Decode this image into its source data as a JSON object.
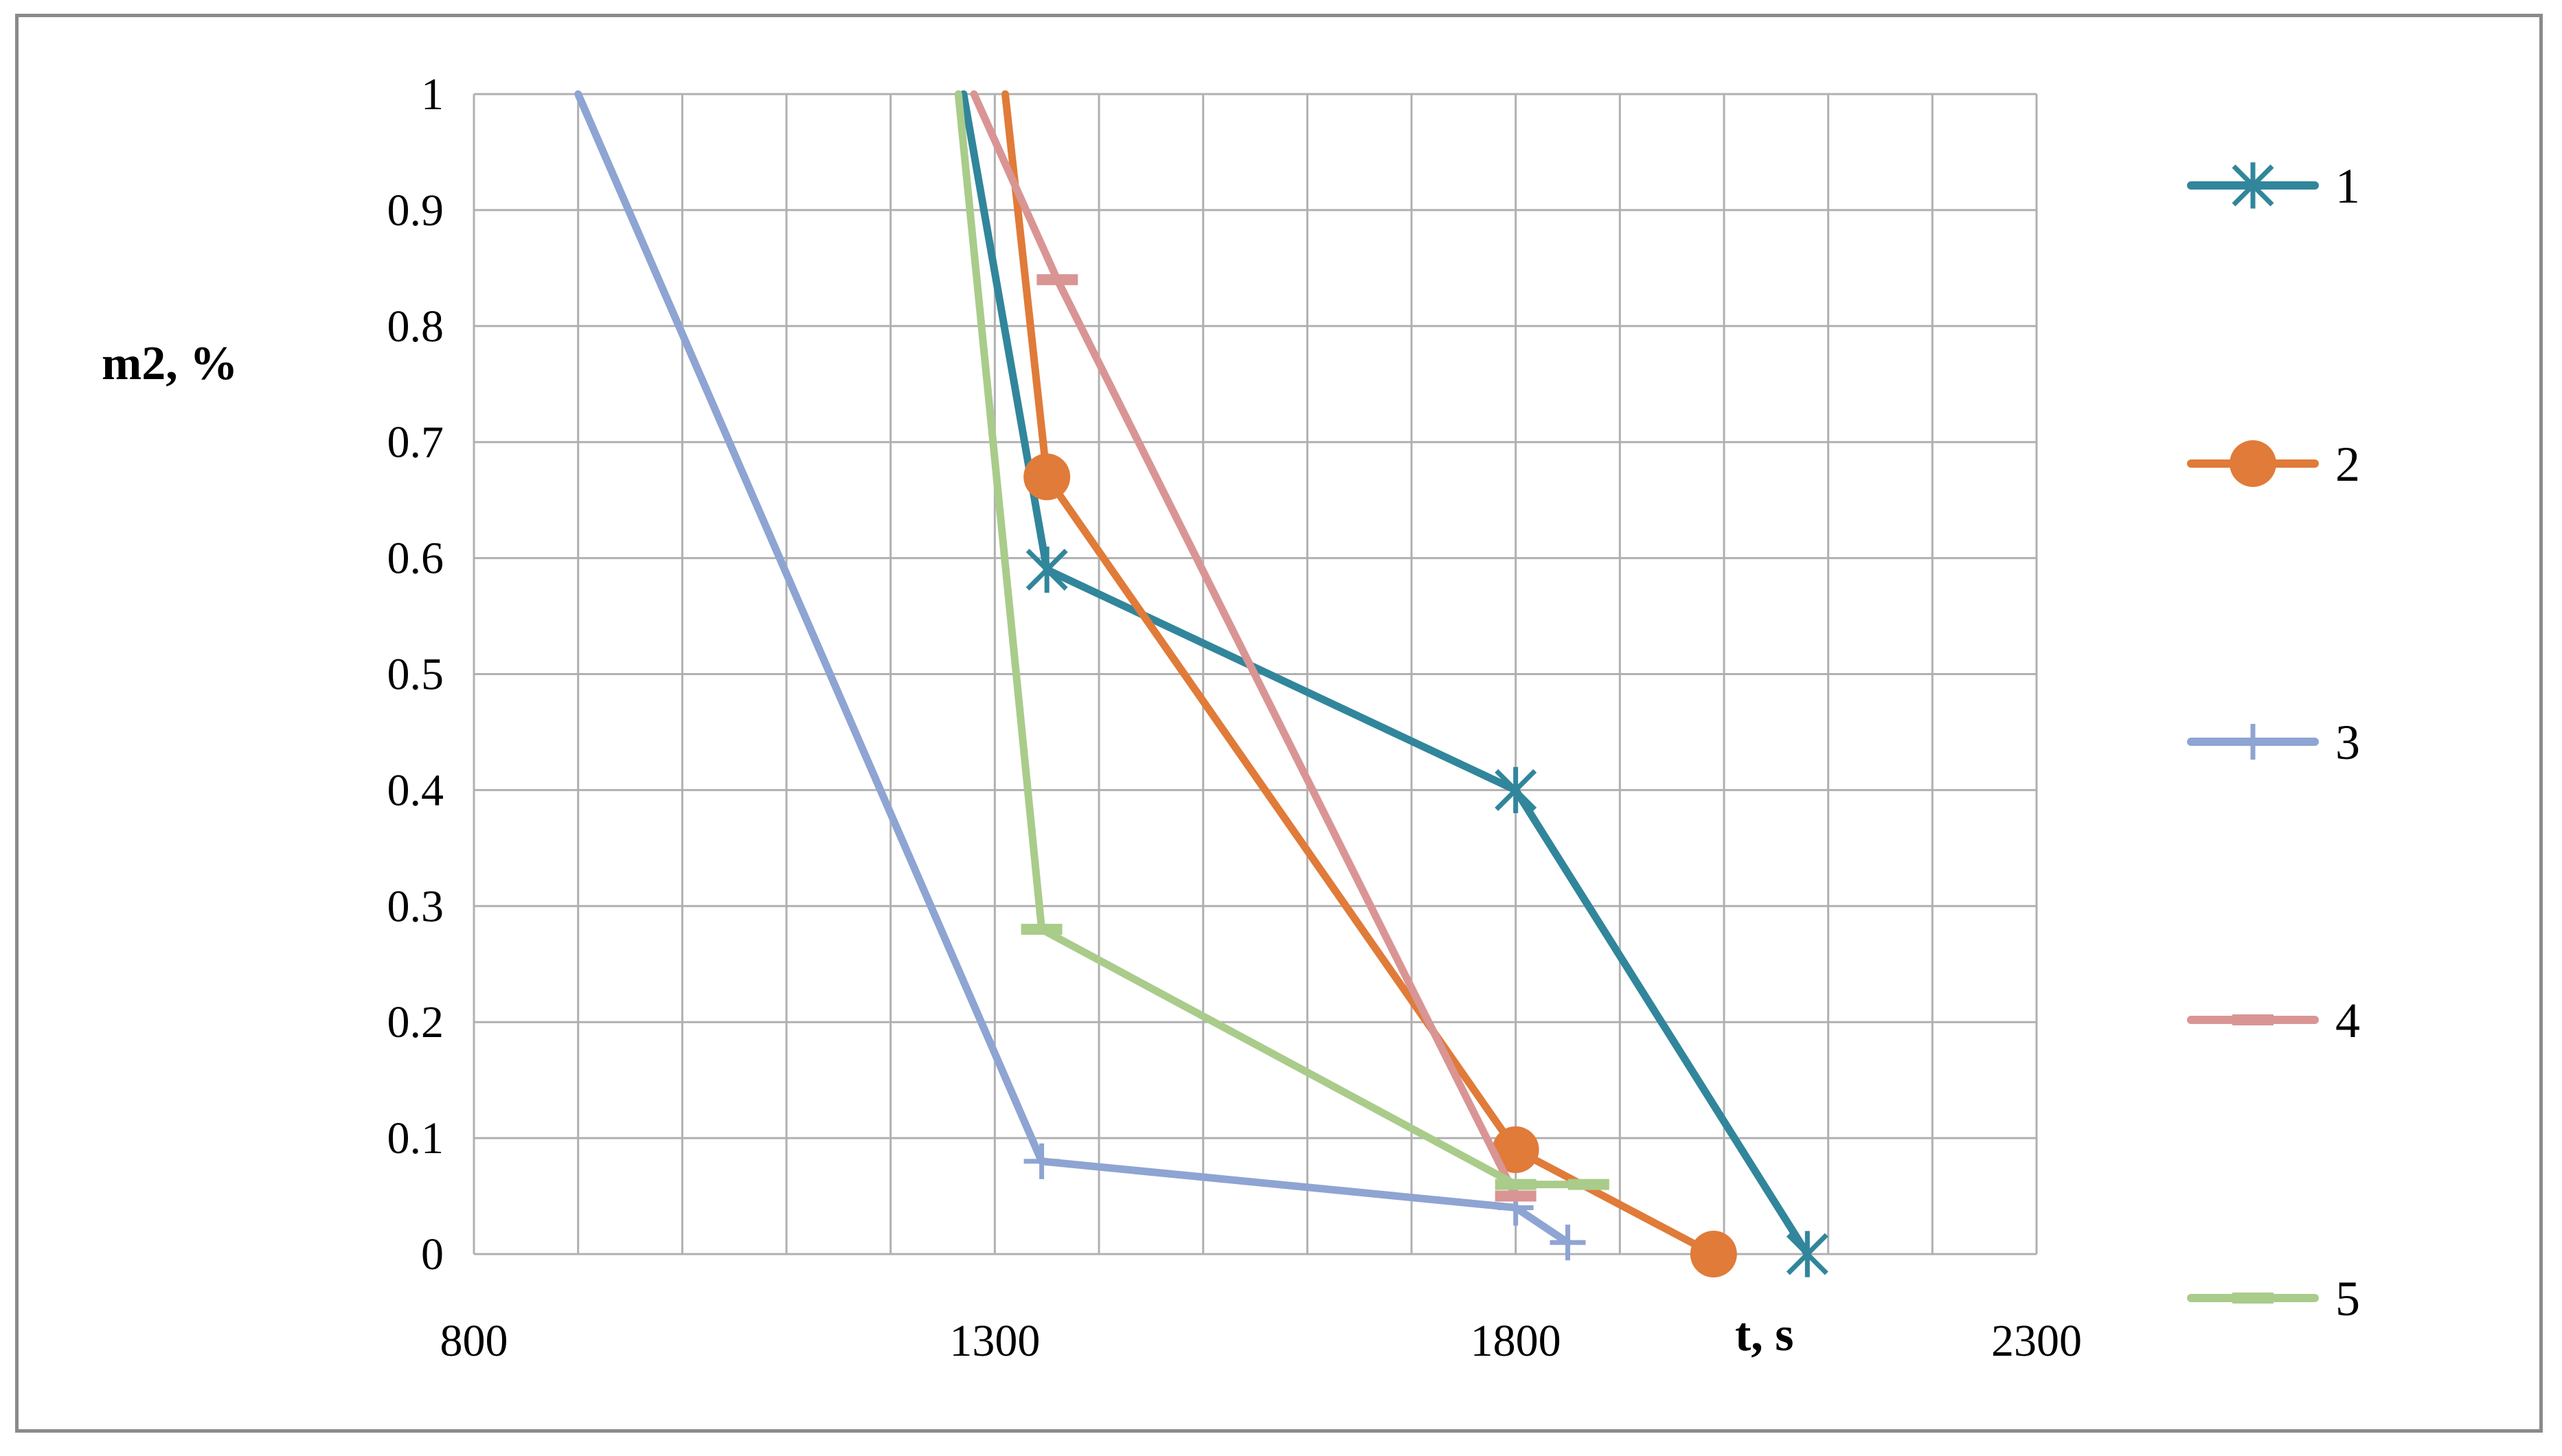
{
  "chart_data": {
    "type": "line",
    "title": "",
    "xlabel": "t, s",
    "ylabel": "m2, %",
    "xlim": [
      800,
      2300
    ],
    "ylim": [
      0,
      1
    ],
    "x_ticks": [
      "800",
      "1300",
      "1800",
      "2300"
    ],
    "y_ticks": [
      "0",
      "0.1",
      "0.2",
      "0.3",
      "0.4",
      "0.5",
      "0.6",
      "0.7",
      "0.8",
      "0.9",
      "1"
    ],
    "grid": true,
    "legend_position": "right",
    "series": [
      {
        "name": "1",
        "color": "#31869B",
        "marker": "asterisk",
        "x": [
          1270,
          1350,
          1800,
          2080
        ],
        "y": [
          1.0,
          0.59,
          0.4,
          0.0
        ]
      },
      {
        "name": "2",
        "color": "#E07B39",
        "marker": "circle",
        "x": [
          1310,
          1350,
          1800,
          1990
        ],
        "y": [
          1.0,
          0.67,
          0.09,
          0.0
        ]
      },
      {
        "name": "3",
        "color": "#8EA4D2",
        "marker": "plus",
        "x": [
          900,
          1345,
          1800,
          1850
        ],
        "y": [
          1.0,
          0.08,
          0.04,
          0.01
        ]
      },
      {
        "name": "4",
        "color": "#D99594",
        "marker": "dash",
        "x": [
          1280,
          1360,
          1800
        ],
        "y": [
          1.0,
          0.84,
          0.05
        ]
      },
      {
        "name": "5",
        "color": "#A9CC8A",
        "marker": "dash",
        "x": [
          1265,
          1345,
          1800,
          1870
        ],
        "y": [
          1.0,
          0.28,
          0.06,
          0.06
        ]
      }
    ]
  }
}
